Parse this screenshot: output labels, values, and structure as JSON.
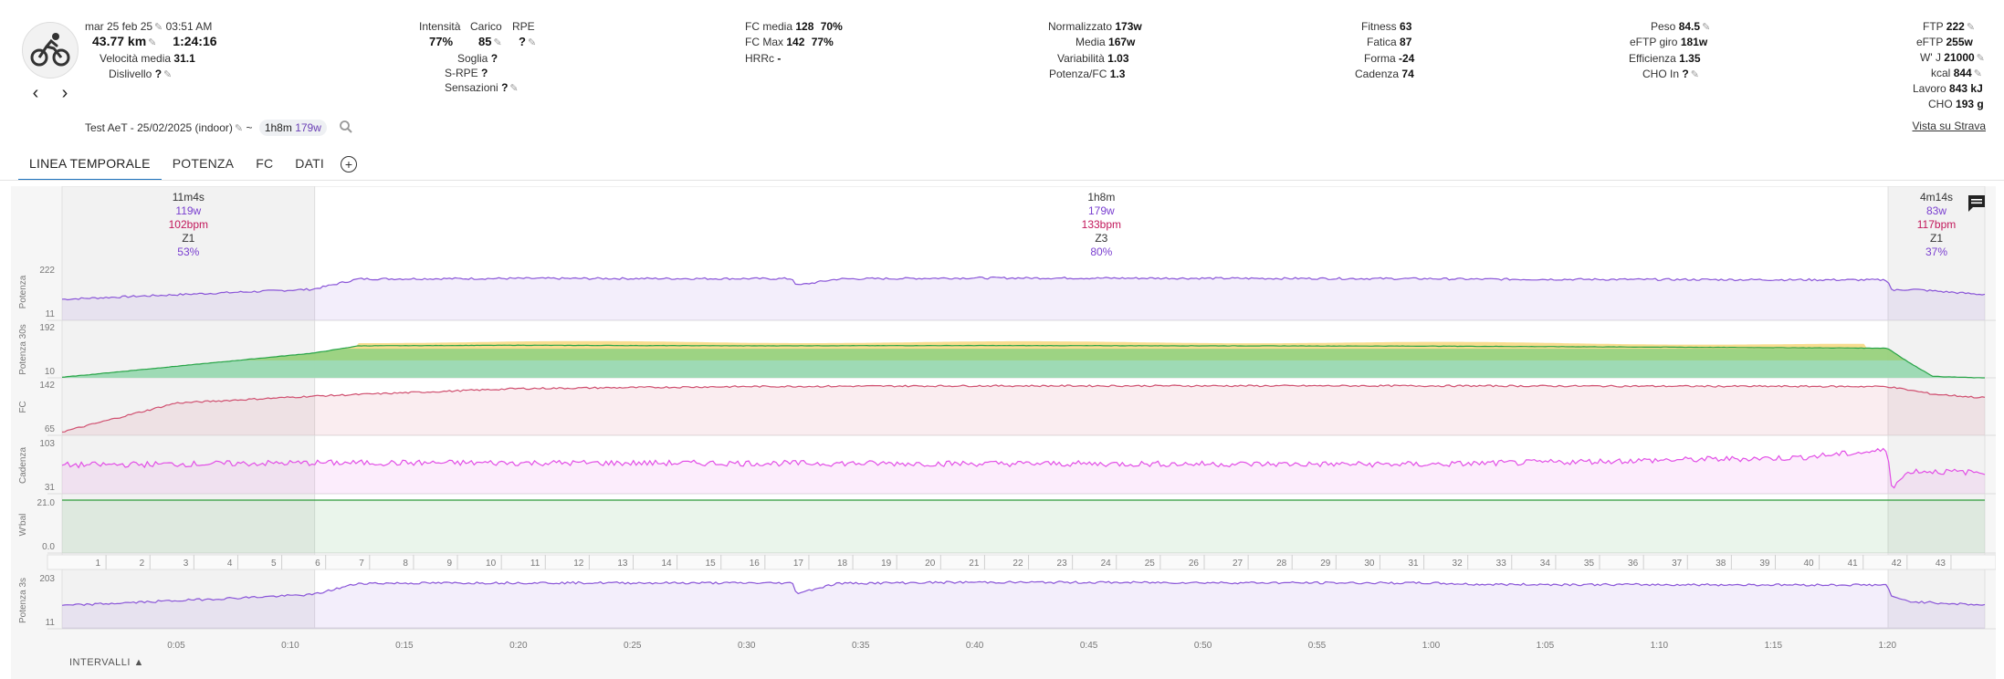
{
  "header": {
    "date": "mar 25 feb 25",
    "time": "03:51 AM",
    "distance": "43.77 km",
    "duration": "1:24:16",
    "avg_speed_label": "Velocità media",
    "avg_speed": "31.1",
    "elevation_label": "Dislivello",
    "elevation": "?",
    "intensity_label": "Intensità",
    "intensity": "77%",
    "load_label": "Carico",
    "load": "85",
    "rpe_label": "RPE",
    "rpe": "?",
    "threshold_label": "Soglia",
    "threshold": "?",
    "srpe_label": "S-RPE",
    "srpe": "?",
    "feel_label": "Sensazioni",
    "feel": "?",
    "hr_avg_label": "FC media",
    "hr_avg": "128",
    "hr_avg_pct": "70%",
    "hr_max_label": "FC Max",
    "hr_max": "142",
    "hr_max_pct": "77%",
    "hrrc_label": "HRRc",
    "hrrc": "-",
    "np_label": "Normalizzato",
    "np": "173w",
    "avg_power_label": "Media",
    "avg_power": "167w",
    "variability_label": "Variabilità",
    "variability": "1.03",
    "power_hr_label": "Potenza/FC",
    "power_hr": "1.3",
    "fitness_label": "Fitness",
    "fitness": "63",
    "fatigue_label": "Fatica",
    "fatigue": "87",
    "form_label": "Forma",
    "form": "-24",
    "cadence_label": "Cadenza",
    "cadence": "74",
    "weight_label": "Peso",
    "weight": "84.5",
    "eftp_ride_label": "eFTP giro",
    "eftp_ride": "181w",
    "efficiency_label": "Efficienza",
    "efficiency": "1.35",
    "cho_in_label": "CHO In",
    "cho_in": "?",
    "ftp_label": "FTP",
    "ftp": "222",
    "eftp_label": "eFTP",
    "eftp": "255w",
    "wprime_label": "W' J",
    "wprime": "21000",
    "kcal_label": "kcal",
    "kcal": "844",
    "work_label": "Lavoro",
    "work": "843 kJ",
    "cho_label": "CHO",
    "cho": "193 g",
    "activity_name": "Test AeT - 25/02/2025 (indoor)",
    "tilde": "~",
    "chip_duration": "1h8m",
    "chip_power": "179w",
    "strava_link": "Vista su Strava"
  },
  "tabs": [
    {
      "label": "LINEA TEMPORALE",
      "active": true
    },
    {
      "label": "POTENZA",
      "active": false
    },
    {
      "label": "FC",
      "active": false
    },
    {
      "label": "DATI",
      "active": false
    }
  ],
  "chart_data": {
    "type": "line",
    "x_unit": "minutes",
    "x_ticks": [
      "0:05",
      "0:10",
      "0:15",
      "0:20",
      "0:25",
      "0:30",
      "0:35",
      "0:40",
      "0:45",
      "0:50",
      "0:55",
      "1:00",
      "1:05",
      "1:10",
      "1:15",
      "1:20"
    ],
    "duration_min": 84.27,
    "km_ticks": [
      "1",
      "2",
      "3",
      "4",
      "5",
      "6",
      "7",
      "8",
      "9",
      "10",
      "11",
      "12",
      "13",
      "14",
      "15",
      "16",
      "17",
      "18",
      "19",
      "20",
      "21",
      "22",
      "23",
      "24",
      "25",
      "26",
      "27",
      "28",
      "29",
      "30",
      "31",
      "32",
      "33",
      "34",
      "35",
      "36",
      "37",
      "38",
      "39",
      "40",
      "41",
      "42",
      "43"
    ],
    "intervals": [
      {
        "duration": "11m4s",
        "power": "119w",
        "hr": "102bpm",
        "zone": "Z1",
        "pct": "53%",
        "start_min": 0,
        "end_min": 11.07
      },
      {
        "duration": "1h8m",
        "power": "179w",
        "hr": "133bpm",
        "zone": "Z3",
        "pct": "80%",
        "start_min": 11.07,
        "end_min": 80.03
      },
      {
        "duration": "4m14s",
        "power": "83w",
        "hr": "117bpm",
        "zone": "Z1",
        "pct": "37%",
        "start_min": 80.03,
        "end_min": 84.27
      }
    ],
    "series": [
      {
        "name": "Potenza",
        "ymin_label": "11",
        "ymax_label": "222",
        "ylim": [
          11,
          222
        ],
        "color": "#8a55d8",
        "points": [
          [
            0,
            95
          ],
          [
            11,
            135
          ],
          [
            13,
            176
          ],
          [
            20,
            178
          ],
          [
            32,
            177
          ],
          [
            32.2,
            150
          ],
          [
            34,
            176
          ],
          [
            40,
            180
          ],
          [
            60,
            177
          ],
          [
            62,
            175
          ],
          [
            80,
            172
          ],
          [
            80.2,
            130
          ],
          [
            81,
            135
          ],
          [
            84,
            115
          ]
        ]
      },
      {
        "name": "Potenza 30s",
        "ymin_label": "10",
        "ymax_label": "192",
        "ylim": [
          10,
          192
        ],
        "color": "#27a447",
        "points": [
          [
            0,
            12
          ],
          [
            11,
            95
          ],
          [
            13,
            120
          ],
          [
            20,
            122
          ],
          [
            30,
            120
          ],
          [
            40,
            121
          ],
          [
            60,
            119
          ],
          [
            80,
            112
          ],
          [
            81,
            60
          ],
          [
            82,
            15
          ],
          [
            84,
            10
          ]
        ]
      },
      {
        "name": "FC",
        "ymin_label": "65",
        "ymax_label": "142",
        "ylim": [
          65,
          142
        ],
        "color": "#d05070",
        "points": [
          [
            0,
            70
          ],
          [
            5,
            112
          ],
          [
            11,
            122
          ],
          [
            20,
            133
          ],
          [
            30,
            136
          ],
          [
            40,
            137
          ],
          [
            60,
            137
          ],
          [
            80,
            136
          ],
          [
            82,
            125
          ],
          [
            84,
            120
          ]
        ]
      },
      {
        "name": "Cadenza",
        "ymin_label": "31",
        "ymax_label": "103",
        "ylim": [
          31,
          103
        ],
        "color": "#e24fe6",
        "points": [
          [
            0,
            70
          ],
          [
            11,
            73
          ],
          [
            20,
            73
          ],
          [
            40,
            72
          ],
          [
            60,
            71
          ],
          [
            76,
            80
          ],
          [
            80,
            90
          ],
          [
            80.2,
            40
          ],
          [
            81,
            62
          ],
          [
            84,
            60
          ]
        ]
      },
      {
        "name": "W'bal",
        "ymin_label": "0.0",
        "ymax_label": "21.0",
        "ylim": [
          0,
          21
        ],
        "color": "#2e9b3a",
        "points": [
          [
            0,
            21
          ],
          [
            84,
            21
          ]
        ]
      },
      {
        "name": "Potenza 3s",
        "ymin_label": "11",
        "ymax_label": "203",
        "ylim": [
          11,
          203
        ],
        "color": "#8a55d8",
        "points": [
          [
            0,
            95
          ],
          [
            11,
            135
          ],
          [
            13,
            176
          ],
          [
            20,
            178
          ],
          [
            32,
            177
          ],
          [
            32.2,
            140
          ],
          [
            34,
            176
          ],
          [
            40,
            180
          ],
          [
            60,
            177
          ],
          [
            62,
            172
          ],
          [
            80,
            170
          ],
          [
            80.2,
            125
          ],
          [
            81,
            110
          ],
          [
            84,
            98
          ]
        ]
      }
    ]
  },
  "intervals_button": "INTERVALLI",
  "icons": [
    "cycling-icon",
    "chevron-left-icon",
    "chevron-right-icon",
    "pencil-icon",
    "search-icon",
    "add-circle-icon",
    "comment-icon",
    "caret-up-icon"
  ]
}
